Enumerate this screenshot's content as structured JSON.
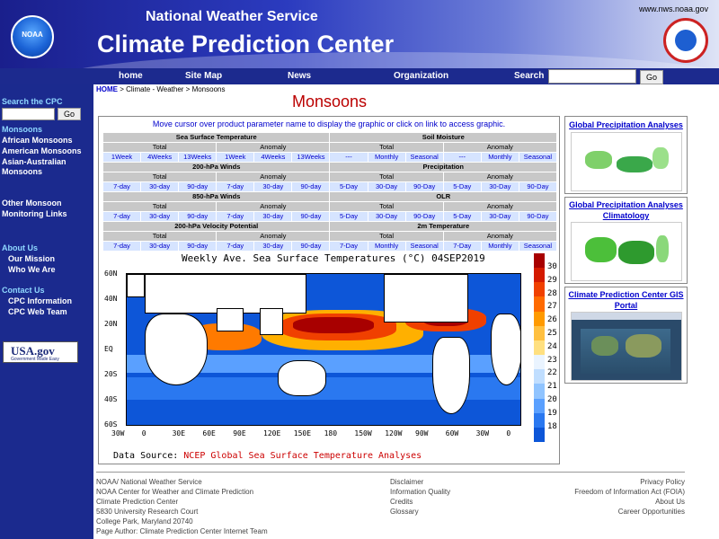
{
  "header": {
    "agency": "National Weather Service",
    "center": "Climate Prediction Center",
    "site_url": "www.nws.noaa.gov",
    "noaa_logo_text": "NOAA"
  },
  "nav": {
    "links": [
      "home",
      "Site Map",
      "News",
      "Organization"
    ],
    "search_label": "Search",
    "search_button": "Go"
  },
  "sidebar": {
    "search_label": "Search the CPC",
    "search_button": "Go",
    "monsoons_heading": "Monsoons",
    "monsoon_links": [
      "African Monsoons",
      "American Monsoons",
      "Asian-Australian Monsoons"
    ],
    "other_heading": "Other Monsoon",
    "other_heading_2": "Monitoring Links",
    "about_heading": "About Us",
    "about_links": [
      "Our Mission",
      "Who We Are"
    ],
    "contact_heading": "Contact Us",
    "contact_links": [
      "CPC Information",
      "CPC Web Team"
    ],
    "usagov": "USA.gov",
    "usagov_tagline": "Government Made Easy"
  },
  "breadcrumb": {
    "home": "HOME",
    "path": "> Climate - Weather > Monsoons"
  },
  "page_title": "Monsoons",
  "main": {
    "instruction": "Move cursor over product parameter name to display the graphic or click on link to access graphic.",
    "table": {
      "left": [
        {
          "category": "Sea Surface Temperature",
          "total": [
            "1Week",
            "4Weeks",
            "13Weeks"
          ],
          "anomaly": [
            "1Week",
            "4Weeks",
            "13Weeks"
          ]
        },
        {
          "category": "200-hPa Winds",
          "total": [
            "7-day",
            "30-day",
            "90-day"
          ],
          "anomaly": [
            "7-day",
            "30-day",
            "90-day"
          ]
        },
        {
          "category": "850-hPa Winds",
          "total": [
            "7-day",
            "30-day",
            "90-day"
          ],
          "anomaly": [
            "7-day",
            "30-day",
            "90-day"
          ]
        },
        {
          "category": "200-hPa Velocity Potential",
          "total": [
            "7-day",
            "30-day",
            "90-day"
          ],
          "anomaly": [
            "7-day",
            "30-day",
            "90-day"
          ]
        }
      ],
      "right": [
        {
          "category": "Soil Moisture",
          "total": [
            "---",
            "Monthly",
            "Seasonal"
          ],
          "anomaly": [
            "---",
            "Monthly",
            "Seasonal"
          ]
        },
        {
          "category": "Precipitation",
          "total": [
            "5-Day",
            "30-Day",
            "90-Day"
          ],
          "anomaly": [
            "5-Day",
            "30-Day",
            "90-Day"
          ]
        },
        {
          "category": "OLR",
          "total": [
            "5-Day",
            "30-Day",
            "90-Day"
          ],
          "anomaly": [
            "5-Day",
            "30-Day",
            "90-Day"
          ]
        },
        {
          "category": "2m Temperature",
          "total": [
            "7-Day",
            "Monthly",
            "Seasonal"
          ],
          "anomaly": [
            "7-Day",
            "Monthly",
            "Seasonal"
          ]
        }
      ],
      "total_label": "Total",
      "anomaly_label": "Anomaly"
    },
    "map": {
      "title": "Weekly Ave. Sea Surface Temperatures (°C) 04SEP2019",
      "lat_labels": [
        "60N",
        "40N",
        "20N",
        "EQ",
        "20S",
        "40S",
        "60S"
      ],
      "lon_labels": [
        "30W",
        "0",
        "30E",
        "60E",
        "90E",
        "120E",
        "150E",
        "180",
        "150W",
        "120W",
        "90W",
        "60W",
        "30W",
        "0"
      ],
      "colorbar_labels": [
        "30",
        "29",
        "28",
        "27",
        "26",
        "25",
        "24",
        "23",
        "22",
        "21",
        "20",
        "19",
        "18"
      ],
      "colorbar_colors": [
        "#a80000",
        "#d41a00",
        "#f04000",
        "#ff6a00",
        "#ff9a00",
        "#ffc040",
        "#ffe080",
        "#eaf4ff",
        "#c0deff",
        "#90c4ff",
        "#5aa0ff",
        "#2a78f0",
        "#0d56d8"
      ],
      "data_source_label": "Data Source:",
      "data_source": "NCEP Global Sea Surface Temperature Analyses"
    }
  },
  "right_panels": [
    {
      "title": "Global Precipitation Analyses"
    },
    {
      "title": "Global Precipitation Analyses Climatology"
    },
    {
      "title": "Climate Prediction Center GIS Portal"
    }
  ],
  "footer": {
    "left": [
      "NOAA/ National Weather Service",
      "NOAA Center for Weather and Climate Prediction",
      "Climate Prediction Center",
      "5830 University Research Court",
      "College Park, Maryland 20740",
      "Page Author: Climate Prediction Center Internet Team"
    ],
    "middle": [
      "Disclaimer",
      "Information Quality",
      "Credits",
      "Glossary"
    ],
    "right": [
      "Privacy Policy",
      "Freedom of Information Act (FOIA)",
      "About Us",
      "Career Opportunities"
    ]
  }
}
